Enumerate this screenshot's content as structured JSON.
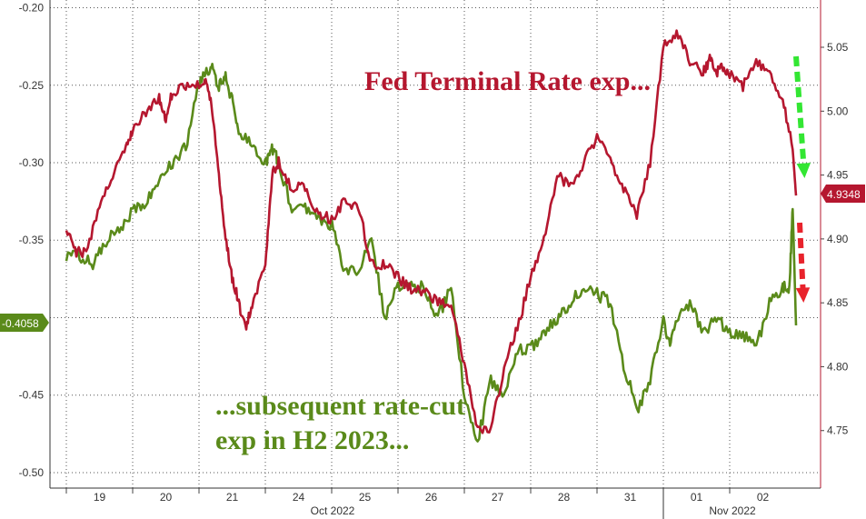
{
  "chart_data": {
    "type": "line",
    "annotations": {
      "terminal": "Fed Terminal Rate exp...",
      "cut_line1": "...subsequent rate-cut",
      "cut_line2": "exp in H2 2023..."
    },
    "x_tick_labels": [
      "19",
      "20",
      "21",
      "24",
      "25",
      "26",
      "27",
      "28",
      "31",
      "01",
      "02"
    ],
    "month_labels": [
      "Oct 2022",
      "Nov 2022"
    ],
    "y_left": {
      "ylim": [
        -0.51,
        -0.195
      ],
      "ticks": [
        "-0.20",
        "-0.25",
        "-0.30",
        "-0.35",
        "-0.40",
        "-0.45",
        "-0.50"
      ]
    },
    "y_right": {
      "ylim": [
        4.705,
        5.087
      ],
      "ticks": [
        "5.05",
        "5.00",
        "4.95",
        "4.90",
        "4.85",
        "4.80",
        "4.75"
      ]
    },
    "last_value_labels": {
      "left": "-0.4058",
      "right": "4.9348"
    },
    "colors": {
      "terminal": "#b5172f",
      "cut": "#5a8a1a",
      "green_arrow": "#33e633",
      "red_arrow": "#e8232c",
      "grid": "#555555"
    },
    "series": [
      {
        "axis": "right",
        "x": [
          0,
          0.15,
          0.3,
          0.5,
          0.7,
          0.9,
          1.0,
          1.2,
          1.4,
          1.5,
          1.6,
          1.8,
          2.0,
          2.1,
          2.2,
          2.3,
          2.4,
          2.5,
          2.6,
          2.7,
          2.8,
          3.0,
          3.1,
          3.2,
          3.4,
          3.6,
          3.8,
          4.0,
          4.2,
          4.4,
          4.6,
          4.8,
          5.0,
          5.2,
          5.4,
          5.6,
          5.8,
          6.0,
          6.2,
          6.4,
          6.6,
          6.8,
          7.0,
          7.2,
          7.4,
          7.6,
          7.8,
          8.0,
          8.2,
          8.4,
          8.6,
          8.8,
          9.0,
          9.2,
          9.4,
          9.6,
          9.7,
          9.8,
          9.9,
          10.0,
          10.2,
          10.4,
          10.6,
          10.8,
          10.95,
          11.0
        ],
        "y": [
          4.905,
          4.89,
          4.89,
          4.925,
          4.95,
          4.97,
          4.985,
          5.0,
          5.01,
          4.995,
          5.015,
          5.02,
          5.02,
          5.025,
          5.0,
          4.95,
          4.9,
          4.87,
          4.85,
          4.83,
          4.85,
          4.88,
          4.95,
          4.96,
          4.94,
          4.94,
          4.92,
          4.915,
          4.93,
          4.925,
          4.88,
          4.88,
          4.87,
          4.86,
          4.86,
          4.85,
          4.85,
          4.8,
          4.75,
          4.75,
          4.8,
          4.83,
          4.87,
          4.9,
          4.95,
          4.94,
          4.96,
          4.98,
          4.96,
          4.94,
          4.92,
          4.96,
          5.05,
          5.06,
          5.04,
          5.03,
          5.04,
          5.03,
          5.035,
          5.03,
          5.02,
          5.04,
          5.03,
          5.01,
          4.97,
          4.934
        ]
      },
      {
        "axis": "left",
        "x": [
          0,
          0.2,
          0.4,
          0.6,
          0.8,
          1.0,
          1.2,
          1.4,
          1.6,
          1.8,
          2.0,
          2.1,
          2.2,
          2.3,
          2.4,
          2.5,
          2.6,
          2.8,
          3.0,
          3.1,
          3.2,
          3.4,
          3.6,
          3.8,
          4.0,
          4.2,
          4.4,
          4.6,
          4.8,
          5.0,
          5.2,
          5.4,
          5.6,
          5.8,
          6.0,
          6.2,
          6.4,
          6.6,
          6.8,
          7.0,
          7.2,
          7.4,
          7.6,
          7.8,
          8.0,
          8.2,
          8.4,
          8.6,
          8.8,
          9.0,
          9.1,
          9.2,
          9.4,
          9.6,
          9.8,
          10.0,
          10.2,
          10.4,
          10.6,
          10.8,
          10.9,
          10.95,
          11.0
        ],
        "y": [
          -0.36,
          -0.36,
          -0.365,
          -0.35,
          -0.345,
          -0.33,
          -0.325,
          -0.31,
          -0.3,
          -0.29,
          -0.25,
          -0.24,
          -0.24,
          -0.25,
          -0.245,
          -0.26,
          -0.28,
          -0.29,
          -0.3,
          -0.29,
          -0.3,
          -0.33,
          -0.33,
          -0.335,
          -0.34,
          -0.37,
          -0.37,
          -0.35,
          -0.4,
          -0.38,
          -0.38,
          -0.38,
          -0.4,
          -0.38,
          -0.45,
          -0.48,
          -0.44,
          -0.45,
          -0.42,
          -0.42,
          -0.41,
          -0.4,
          -0.39,
          -0.38,
          -0.385,
          -0.39,
          -0.43,
          -0.46,
          -0.44,
          -0.4,
          -0.42,
          -0.4,
          -0.39,
          -0.41,
          -0.4,
          -0.41,
          -0.41,
          -0.42,
          -0.39,
          -0.38,
          -0.38,
          -0.33,
          -0.405
        ]
      }
    ]
  }
}
